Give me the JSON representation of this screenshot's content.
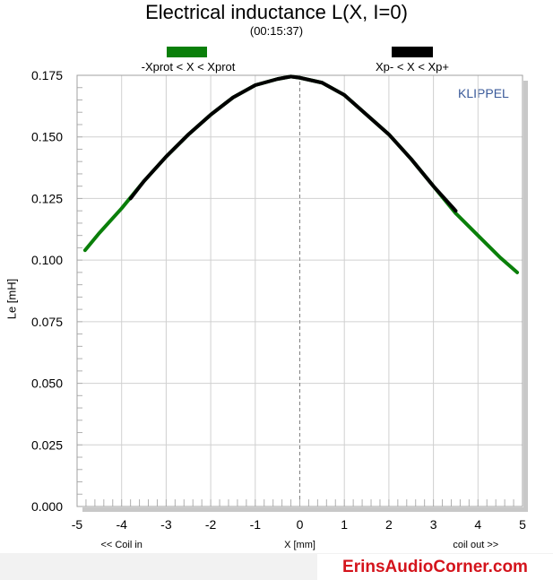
{
  "chart_data": {
    "type": "line",
    "title": "Electrical inductance L(X, I=0)",
    "subtitle": "(00:15:37)",
    "ylabel": "Le [mH]",
    "xlabel": "X [mm]",
    "x_left_note": "<< Coil in",
    "x_right_note": "coil out >>",
    "brand": "KLIPPEL",
    "xlim": [
      -5,
      5
    ],
    "ylim": [
      0,
      0.175
    ],
    "x_ticks": [
      "-5",
      "-4",
      "-3",
      "-2",
      "-1",
      "0",
      "1",
      "2",
      "3",
      "4",
      "5"
    ],
    "y_ticks": [
      "0.000",
      "0.025",
      "0.050",
      "0.075",
      "0.100",
      "0.125",
      "0.150",
      "0.175"
    ],
    "grid": true,
    "series": [
      {
        "name": "-Xprot < X < Xprot",
        "color": "#0a7f0a",
        "x": [
          -4.82,
          -4.5,
          -4.0,
          -3.5,
          -3.0,
          -2.5,
          -2.0,
          -1.5,
          -1.0,
          -0.5,
          -0.2,
          0.0,
          0.5,
          1.0,
          1.5,
          2.0,
          2.5,
          3.0,
          3.5,
          4.0,
          4.5,
          4.88
        ],
        "y": [
          0.104,
          0.111,
          0.121,
          0.132,
          0.142,
          0.151,
          0.159,
          0.166,
          0.171,
          0.1735,
          0.1745,
          0.174,
          0.172,
          0.167,
          0.159,
          0.151,
          0.141,
          0.13,
          0.119,
          0.11,
          0.101,
          0.095
        ]
      },
      {
        "name": "Xp- < X < Xp+",
        "color": "#000000",
        "x": [
          -3.8,
          -3.5,
          -3.0,
          -2.5,
          -2.0,
          -1.5,
          -1.0,
          -0.5,
          -0.2,
          0.0,
          0.5,
          1.0,
          1.5,
          2.0,
          2.5,
          3.0,
          3.5
        ],
        "y": [
          0.125,
          0.132,
          0.142,
          0.151,
          0.159,
          0.166,
          0.171,
          0.1735,
          0.1745,
          0.174,
          0.172,
          0.167,
          0.159,
          0.151,
          0.141,
          0.13,
          0.12
        ]
      }
    ]
  },
  "watermark": "ErinsAudioCorner.com"
}
